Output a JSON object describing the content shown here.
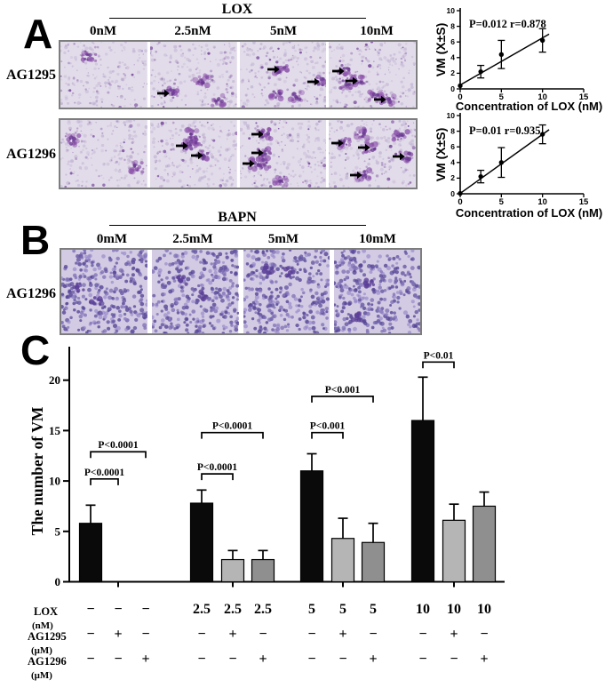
{
  "panel_a": {
    "letter": "A",
    "treatment": "LOX",
    "doses": [
      "0nM",
      "2.5nM",
      "5nM",
      "10nM"
    ],
    "rows": [
      {
        "label": "AG1295",
        "arrows": [
          {
            "p": 1,
            "x": 0.15,
            "y": 0.78
          },
          {
            "p": 2,
            "x": 0.38,
            "y": 0.42
          },
          {
            "p": 2,
            "x": 0.84,
            "y": 0.61
          },
          {
            "p": 3,
            "x": 0.1,
            "y": 0.45
          },
          {
            "p": 3,
            "x": 0.25,
            "y": 0.59
          },
          {
            "p": 3,
            "x": 0.58,
            "y": 0.88
          }
        ]
      },
      {
        "label": "AG1296",
        "arrows": [
          {
            "p": 1,
            "x": 0.36,
            "y": 0.38
          },
          {
            "p": 1,
            "x": 0.53,
            "y": 0.53
          },
          {
            "p": 2,
            "x": 0.2,
            "y": 0.21
          },
          {
            "p": 2,
            "x": 0.2,
            "y": 0.49
          },
          {
            "p": 2,
            "x": 0.1,
            "y": 0.65
          },
          {
            "p": 3,
            "x": 0.09,
            "y": 0.34
          },
          {
            "p": 3,
            "x": 0.4,
            "y": 0.41
          },
          {
            "p": 3,
            "x": 0.8,
            "y": 0.54
          },
          {
            "p": 3,
            "x": 0.3,
            "y": 0.81
          }
        ]
      }
    ]
  },
  "panel_b": {
    "letter": "B",
    "treatment": "BAPN",
    "doses": [
      "0mM",
      "2.5mM",
      "5mM",
      "10mM"
    ],
    "rows": [
      {
        "label": "AG1296",
        "arrows": []
      }
    ]
  },
  "panel_c": {
    "letter": "C",
    "table": {
      "rows": [
        {
          "label": "LOX",
          "unit": "(nM)",
          "values": [
            "−",
            "−",
            "−",
            "2.5",
            "2.5",
            "2.5",
            "5",
            "5",
            "5",
            "10",
            "10",
            "10"
          ]
        },
        {
          "label": "AG1295",
          "unit": "(μM)",
          "values": [
            "−",
            "+",
            "−",
            "−",
            "+",
            "−",
            "−",
            "+",
            "−",
            "−",
            "+",
            "−"
          ]
        },
        {
          "label": "AG1296",
          "unit": "(μM)",
          "values": [
            "−",
            "−",
            "+",
            "−",
            "−",
            "+",
            "−",
            "−",
            "+",
            "−",
            "−",
            "+"
          ]
        }
      ]
    }
  },
  "chart_data": [
    {
      "type": "scatter",
      "id": "lox-dose-response-ag1295",
      "annotation": "P=0.012  r=0.878",
      "xlabel": "Concentration of LOX  (nM)",
      "ylabel": "VM  (X±S)",
      "xlim": [
        0,
        15
      ],
      "ylim": [
        0,
        10
      ],
      "xticks": [
        0,
        5,
        10,
        15
      ],
      "yticks": [
        0,
        2,
        4,
        6,
        8,
        10
      ],
      "x": [
        0,
        2.5,
        5,
        10
      ],
      "y": [
        0.4,
        2.2,
        4.4,
        6.2
      ],
      "yerr": [
        0,
        0.8,
        1.8,
        1.5
      ],
      "fit": {
        "x1": 0,
        "y1": 0.5,
        "x2": 10.8,
        "y2": 7.0
      },
      "grid": false,
      "legend": "none"
    },
    {
      "type": "scatter",
      "id": "lox-dose-response-ag1296",
      "annotation": "P=0.01  r=0.935",
      "xlabel": "Concentration of LOX  (nM)",
      "ylabel": "VM  (X±S)",
      "xlim": [
        0,
        15
      ],
      "ylim": [
        0,
        10
      ],
      "xticks": [
        0,
        5,
        10,
        15
      ],
      "yticks": [
        0,
        2,
        4,
        6,
        8,
        10
      ],
      "x": [
        0,
        2.5,
        5,
        10
      ],
      "y": [
        0.05,
        2.2,
        4.0,
        7.6
      ],
      "yerr": [
        0,
        0.8,
        1.9,
        1.2
      ],
      "fit": {
        "x1": 0,
        "y1": 0.05,
        "x2": 10.8,
        "y2": 8.2
      },
      "grid": false,
      "legend": "none"
    },
    {
      "type": "bar",
      "id": "vm-count-bars",
      "ylabel": "The number of VM",
      "ylim": [
        0,
        23
      ],
      "yticks": [
        0,
        5,
        10,
        15,
        20
      ],
      "values": [
        5.8,
        0,
        0,
        7.8,
        2.2,
        2.2,
        11,
        4.3,
        3.9,
        16,
        6.1,
        7.5
      ],
      "errors": [
        1.8,
        0,
        0,
        1.3,
        0.9,
        0.9,
        1.7,
        2.0,
        1.9,
        4.3,
        1.6,
        1.4
      ],
      "colors": [
        "black",
        "none",
        "none",
        "black",
        "gray_light",
        "gray_dark",
        "black",
        "gray_light",
        "gray_dark",
        "black",
        "gray_light",
        "gray_dark"
      ],
      "palette": {
        "black": "#0a0a0a",
        "gray_light": "#b5b5b5",
        "gray_dark": "#8f8f8f"
      },
      "group_ticks": [
        1,
        4,
        7,
        10
      ],
      "brackets": [
        {
          "from": 0,
          "to": 1,
          "h": 10.2,
          "label": "P<0.0001"
        },
        {
          "from": 0,
          "to": 2,
          "h": 12.9,
          "label": "P<0.0001"
        },
        {
          "from": 3,
          "to": 4,
          "h": 10.7,
          "label": "P<0.0001"
        },
        {
          "from": 3,
          "to": 5,
          "h": 14.8,
          "label": "P<0.0001"
        },
        {
          "from": 6,
          "to": 7,
          "h": 14.8,
          "label": "P<0.001"
        },
        {
          "from": 6,
          "to": 8,
          "h": 18.4,
          "label": "P<0.001"
        },
        {
          "from": 9,
          "to": 10,
          "h": 21.8,
          "label": "P<0.01"
        }
      ],
      "grid": false,
      "legend": "none"
    }
  ]
}
